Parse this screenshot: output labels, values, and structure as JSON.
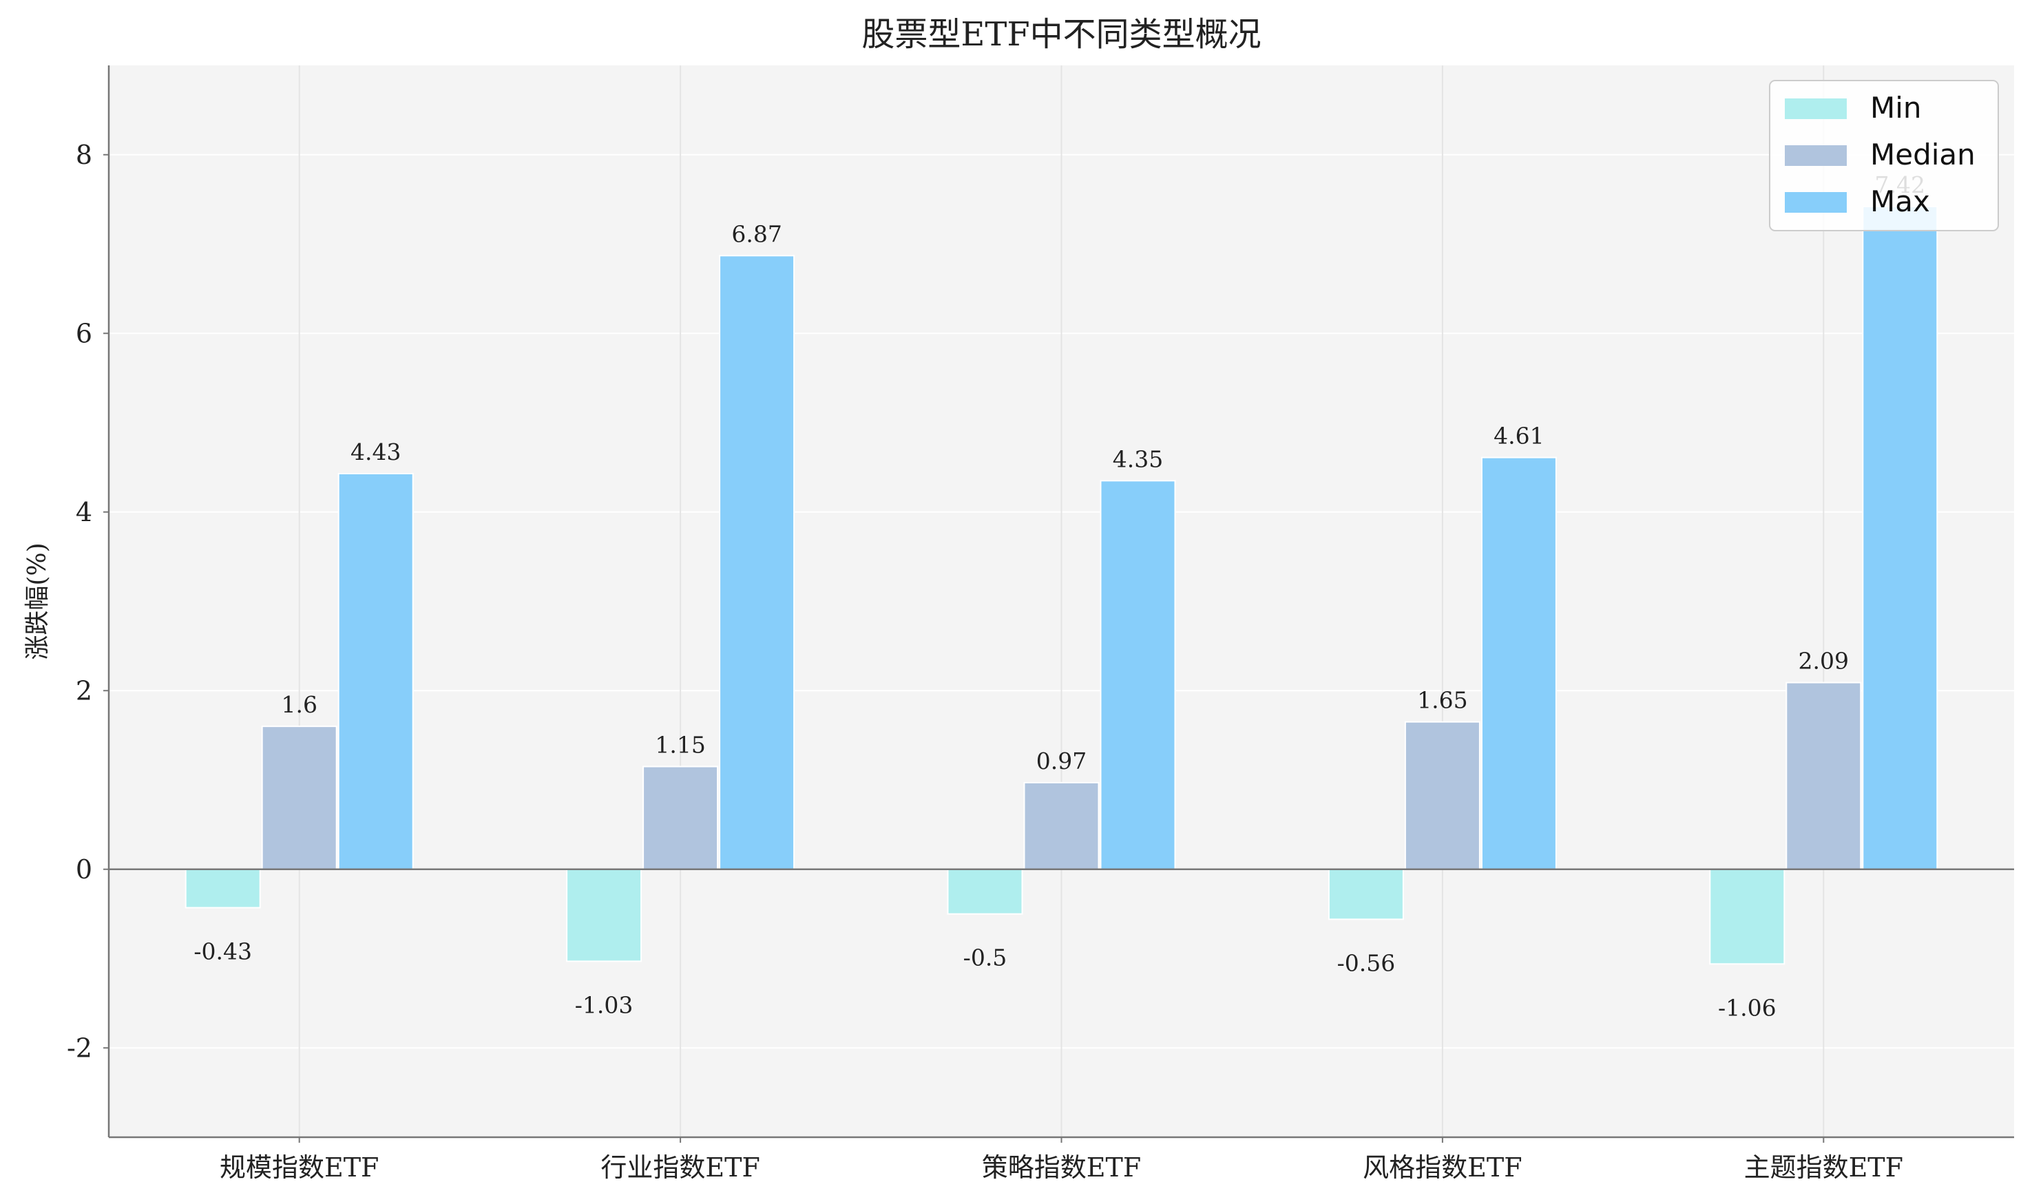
{
  "chart_data": {
    "type": "bar",
    "title": "股票型ETF中不同类型概况",
    "xlabel": "",
    "ylabel": "涨跌幅(%)",
    "categories": [
      "规模指数ETF",
      "行业指数ETF",
      "策略指数ETF",
      "风格指数ETF",
      "主题指数ETF"
    ],
    "series": [
      {
        "name": "Min",
        "color": "#AFEEEE",
        "values": [
          -0.43,
          -1.03,
          -0.5,
          -0.56,
          -1.06
        ]
      },
      {
        "name": "Median",
        "color": "#B0C4DE",
        "values": [
          1.6,
          1.15,
          0.97,
          1.65,
          2.09
        ]
      },
      {
        "name": "Max",
        "color": "#87CEFA",
        "values": [
          4.43,
          6.87,
          4.35,
          4.61,
          7.42
        ]
      }
    ],
    "ylim": [
      -3,
      9
    ],
    "yticks": [
      -2,
      0,
      2,
      4,
      6,
      8
    ],
    "grid": true,
    "legend_position": "top-right",
    "background_color": "#F4F4F4"
  }
}
